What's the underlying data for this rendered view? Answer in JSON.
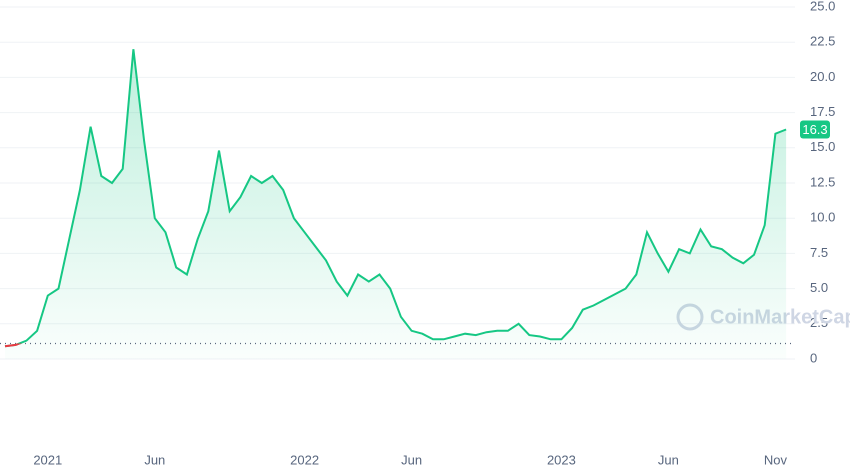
{
  "chart_data": {
    "type": "line",
    "categories": [
      null,
      null,
      null,
      null,
      "2021",
      null,
      null,
      null,
      null,
      null,
      null,
      null,
      null,
      null,
      "Jun",
      null,
      null,
      null,
      null,
      null,
      null,
      null,
      null,
      null,
      null,
      null,
      null,
      null,
      "2022",
      null,
      null,
      null,
      null,
      null,
      null,
      null,
      null,
      null,
      "Jun",
      null,
      null,
      null,
      null,
      null,
      null,
      null,
      null,
      null,
      null,
      null,
      null,
      null,
      "2023",
      null,
      null,
      null,
      null,
      null,
      null,
      null,
      null,
      null,
      "Jun",
      null,
      null,
      null,
      null,
      null,
      null,
      null,
      null,
      null,
      "Nov",
      null
    ],
    "series": [
      {
        "color": "#16c784",
        "below_color": "#ea3943",
        "values": [
          0.9,
          1.0,
          1.3,
          2.0,
          4.5,
          5.0,
          8.5,
          12.0,
          16.5,
          13.0,
          12.5,
          13.5,
          22.0,
          15.5,
          10.0,
          9.0,
          6.5,
          6.0,
          8.5,
          10.5,
          14.8,
          10.5,
          11.5,
          13.0,
          12.5,
          13.0,
          12.0,
          10.0,
          9.0,
          8.0,
          7.0,
          5.5,
          4.5,
          6.0,
          5.5,
          6.0,
          5.0,
          3.0,
          2.0,
          1.8,
          1.4,
          1.4,
          1.6,
          1.8,
          1.7,
          1.9,
          2.0,
          2.0,
          2.5,
          1.7,
          1.6,
          1.4,
          1.4,
          2.2,
          3.5,
          3.8,
          4.2,
          4.6,
          5.0,
          6.0,
          9.0,
          7.5,
          6.2,
          7.8,
          7.5,
          9.2,
          8.0,
          7.8,
          7.2,
          6.8,
          7.4,
          9.5,
          16.0,
          16.3
        ]
      }
    ],
    "baseline": 1.1,
    "ylim": [
      0,
      25
    ],
    "yticks": [
      0,
      2.5,
      {
        "value": 5,
        "label": "5.0"
      },
      7.5,
      {
        "value": 10,
        "label": "10.0"
      },
      12.5,
      {
        "value": 15,
        "label": "15.0"
      },
      17.5,
      {
        "value": 20,
        "label": "20.0"
      },
      22.5,
      {
        "value": 25,
        "label": "25.0"
      }
    ],
    "grid": true,
    "watermark": "CoinMarketCap"
  }
}
